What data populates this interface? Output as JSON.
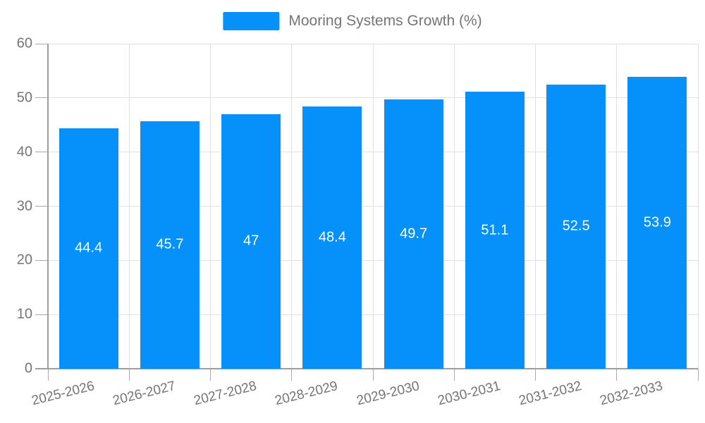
{
  "legend": {
    "label": "Mooring Systems Growth (%)"
  },
  "colors": {
    "bar": "#0690FA",
    "legend_text": "#757575",
    "axis_text": "#757575",
    "value_text": "#ffffff",
    "axis_line": "#9e9e9e",
    "tick_line": "#aaaaaa",
    "grid_line": "#e0e0e0",
    "background": "#ffffff"
  },
  "chart_data": {
    "type": "bar",
    "title": "Mooring Systems Growth (%)",
    "series": [
      {
        "name": "Mooring Systems Growth (%)",
        "values": [
          44.4,
          45.7,
          47,
          48.4,
          49.7,
          51.1,
          52.5,
          53.9
        ]
      }
    ],
    "categories": [
      "2025-2026",
      "2026-2027",
      "2027-2028",
      "2028-2029",
      "2029-2030",
      "2030-2031",
      "2031-2032",
      "2032-2033"
    ],
    "value_labels": [
      "44.4",
      "45.7",
      "47",
      "48.4",
      "49.7",
      "51.1",
      "52.5",
      "53.9"
    ],
    "xlabel": "",
    "ylabel": "",
    "ylim": [
      0,
      60
    ],
    "y_ticks": [
      0,
      10,
      20,
      30,
      40,
      50,
      60
    ],
    "grid": true,
    "legend_position": "top-center",
    "bar_label_position": "inside-center",
    "x_label_rotation_deg": -14
  }
}
